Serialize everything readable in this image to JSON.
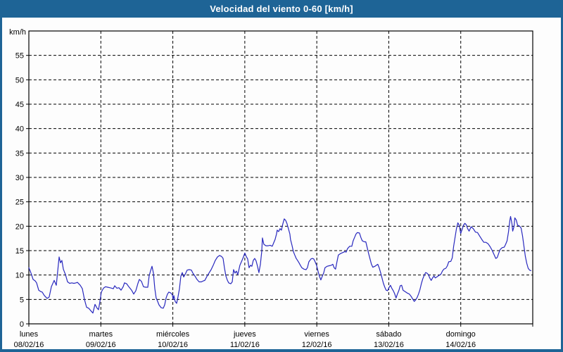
{
  "window": {
    "title": "Velocidad del viento 0-60 [km/h]"
  },
  "colors": {
    "frame": "#1e6496",
    "titlebar_bg": "#1e6496",
    "titlebar_text": "#ffffff",
    "content_bg": "#fdfdfd",
    "axis": "#000000",
    "grid": "#000000",
    "text": "#000000",
    "line": "#2828be"
  },
  "chart_data": {
    "type": "line",
    "title": "Velocidad del viento 0-60 [km/h]",
    "unit_label": "km/h",
    "xlabel": "",
    "ylabel": "km/h",
    "ylim": [
      0,
      60
    ],
    "xlim_days": [
      0,
      7
    ],
    "yticks": [
      0,
      5,
      10,
      15,
      20,
      25,
      30,
      35,
      40,
      45,
      50,
      55
    ],
    "grid": "dashed",
    "legend": "none",
    "days": [
      {
        "name": "lunes",
        "date": "08/02/16"
      },
      {
        "name": "martes",
        "date": "09/02/16"
      },
      {
        "name": "miércoles",
        "date": "10/02/16"
      },
      {
        "name": "jueves",
        "date": "11/02/16"
      },
      {
        "name": "viernes",
        "date": "12/02/16"
      },
      {
        "name": "sábado",
        "date": "13/02/16"
      },
      {
        "name": "domingo",
        "date": "14/02/16"
      }
    ],
    "series": [
      {
        "name": "Velocidad del viento",
        "color": "#2828be",
        "points": [
          [
            0.0,
            11.5
          ],
          [
            0.02,
            10.8
          ],
          [
            0.039,
            10.0
          ],
          [
            0.059,
            9.1
          ],
          [
            0.088,
            8.8
          ],
          [
            0.108,
            8.4
          ],
          [
            0.137,
            6.9
          ],
          [
            0.166,
            6.6
          ],
          [
            0.186,
            6.5
          ],
          [
            0.215,
            5.8
          ],
          [
            0.254,
            5.2
          ],
          [
            0.283,
            5.5
          ],
          [
            0.313,
            7.6
          ],
          [
            0.352,
            8.9
          ],
          [
            0.381,
            7.9
          ],
          [
            0.42,
            13.7
          ],
          [
            0.44,
            12.5
          ],
          [
            0.459,
            13.0
          ],
          [
            0.479,
            11.2
          ],
          [
            0.508,
            10.1
          ],
          [
            0.538,
            8.6
          ],
          [
            0.567,
            8.3
          ],
          [
            0.596,
            8.4
          ],
          [
            0.626,
            8.3
          ],
          [
            0.655,
            8.4
          ],
          [
            0.675,
            8.5
          ],
          [
            0.714,
            7.9
          ],
          [
            0.743,
            7.2
          ],
          [
            0.772,
            5.0
          ],
          [
            0.802,
            3.4
          ],
          [
            0.831,
            3.2
          ],
          [
            0.86,
            2.7
          ],
          [
            0.89,
            2.2
          ],
          [
            0.919,
            4.0
          ],
          [
            0.948,
            3.2
          ],
          [
            0.968,
            2.9
          ],
          [
            0.987,
            4.6
          ],
          [
            1.007,
            6.5
          ],
          [
            1.036,
            7.3
          ],
          [
            1.066,
            7.6
          ],
          [
            1.095,
            7.5
          ],
          [
            1.124,
            7.4
          ],
          [
            1.153,
            7.3
          ],
          [
            1.173,
            7.2
          ],
          [
            1.193,
            7.8
          ],
          [
            1.222,
            7.3
          ],
          [
            1.251,
            7.4
          ],
          [
            1.281,
            6.9
          ],
          [
            1.31,
            7.6
          ],
          [
            1.329,
            8.4
          ],
          [
            1.359,
            8.2
          ],
          [
            1.388,
            7.6
          ],
          [
            1.427,
            6.9
          ],
          [
            1.457,
            6.1
          ],
          [
            1.486,
            6.8
          ],
          [
            1.515,
            8.3
          ],
          [
            1.535,
            9.1
          ],
          [
            1.564,
            8.7
          ],
          [
            1.593,
            7.6
          ],
          [
            1.623,
            7.5
          ],
          [
            1.652,
            7.5
          ],
          [
            1.671,
            9.8
          ],
          [
            1.691,
            10.9
          ],
          [
            1.711,
            11.8
          ],
          [
            1.73,
            10.4
          ],
          [
            1.75,
            7.2
          ],
          [
            1.769,
            5.3
          ],
          [
            1.789,
            4.6
          ],
          [
            1.808,
            3.9
          ],
          [
            1.838,
            3.3
          ],
          [
            1.867,
            3.2
          ],
          [
            1.887,
            3.9
          ],
          [
            1.906,
            5.3
          ],
          [
            1.926,
            6.1
          ],
          [
            1.945,
            6.5
          ],
          [
            1.975,
            6.3
          ],
          [
            1.994,
            5.9
          ],
          [
            2.004,
            5.0
          ],
          [
            2.014,
            5.8
          ],
          [
            2.033,
            4.6
          ],
          [
            2.053,
            4.2
          ],
          [
            2.072,
            5.5
          ],
          [
            2.092,
            7.2
          ],
          [
            2.112,
            9.8
          ],
          [
            2.131,
            10.5
          ],
          [
            2.151,
            9.6
          ],
          [
            2.17,
            10.1
          ],
          [
            2.199,
            11.0
          ],
          [
            2.229,
            11.1
          ],
          [
            2.258,
            11.0
          ],
          [
            2.278,
            10.4
          ],
          [
            2.307,
            9.8
          ],
          [
            2.336,
            9.1
          ],
          [
            2.366,
            8.6
          ],
          [
            2.395,
            8.6
          ],
          [
            2.424,
            8.8
          ],
          [
            2.444,
            8.9
          ],
          [
            2.473,
            9.7
          ],
          [
            2.502,
            10.4
          ],
          [
            2.532,
            11.1
          ],
          [
            2.561,
            12.0
          ],
          [
            2.59,
            13.0
          ],
          [
            2.62,
            13.7
          ],
          [
            2.649,
            14.0
          ],
          [
            2.678,
            13.8
          ],
          [
            2.698,
            13.4
          ],
          [
            2.717,
            11.5
          ],
          [
            2.737,
            9.8
          ],
          [
            2.756,
            9.0
          ],
          [
            2.776,
            8.4
          ],
          [
            2.805,
            8.2
          ],
          [
            2.825,
            8.6
          ],
          [
            2.844,
            11.1
          ],
          [
            2.864,
            10.4
          ],
          [
            2.883,
            10.8
          ],
          [
            2.903,
            10.1
          ],
          [
            2.932,
            12.0
          ],
          [
            2.961,
            13.0
          ],
          [
            2.981,
            13.7
          ],
          [
            3.0,
            14.5
          ],
          [
            3.02,
            13.8
          ],
          [
            3.04,
            13.3
          ],
          [
            3.059,
            11.5
          ],
          [
            3.079,
            12.0
          ],
          [
            3.098,
            11.8
          ],
          [
            3.118,
            13.0
          ],
          [
            3.137,
            13.4
          ],
          [
            3.157,
            12.9
          ],
          [
            3.176,
            11.8
          ],
          [
            3.196,
            10.5
          ],
          [
            3.216,
            12.2
          ],
          [
            3.235,
            14.8
          ],
          [
            3.245,
            17.6
          ],
          [
            3.264,
            16.3
          ],
          [
            3.294,
            16.0
          ],
          [
            3.323,
            16.0
          ],
          [
            3.352,
            16.1
          ],
          [
            3.382,
            15.9
          ],
          [
            3.401,
            16.6
          ],
          [
            3.421,
            17.3
          ],
          [
            3.44,
            18.4
          ],
          [
            3.45,
            19.2
          ],
          [
            3.47,
            18.9
          ],
          [
            3.489,
            19.5
          ],
          [
            3.509,
            19.2
          ],
          [
            3.528,
            20.5
          ],
          [
            3.548,
            21.5
          ],
          [
            3.567,
            21.2
          ],
          [
            3.587,
            20.5
          ],
          [
            3.606,
            19.5
          ],
          [
            3.626,
            18.4
          ],
          [
            3.635,
            17.3
          ],
          [
            3.655,
            16.1
          ],
          [
            3.675,
            14.8
          ],
          [
            3.694,
            14.1
          ],
          [
            3.714,
            13.4
          ],
          [
            3.733,
            13.0
          ],
          [
            3.753,
            12.5
          ],
          [
            3.772,
            12.0
          ],
          [
            3.792,
            11.5
          ],
          [
            3.821,
            11.2
          ],
          [
            3.851,
            11.1
          ],
          [
            3.87,
            11.5
          ],
          [
            3.89,
            12.7
          ],
          [
            3.919,
            13.3
          ],
          [
            3.938,
            13.4
          ],
          [
            3.958,
            13.3
          ],
          [
            3.977,
            12.7
          ],
          [
            3.997,
            12.0
          ],
          [
            4.017,
            10.8
          ],
          [
            4.036,
            9.8
          ],
          [
            4.056,
            9.0
          ],
          [
            4.075,
            9.7
          ],
          [
            4.095,
            10.4
          ],
          [
            4.114,
            11.5
          ],
          [
            4.144,
            11.8
          ],
          [
            4.173,
            11.9
          ],
          [
            4.202,
            12.0
          ],
          [
            4.222,
            12.2
          ],
          [
            4.241,
            11.5
          ],
          [
            4.261,
            11.2
          ],
          [
            4.28,
            12.7
          ],
          [
            4.3,
            14.1
          ],
          [
            4.329,
            14.4
          ],
          [
            4.359,
            14.6
          ],
          [
            4.388,
            14.8
          ],
          [
            4.408,
            14.7
          ],
          [
            4.427,
            15.4
          ],
          [
            4.457,
            15.9
          ],
          [
            4.486,
            15.9
          ],
          [
            4.505,
            17.0
          ],
          [
            4.525,
            17.7
          ],
          [
            4.545,
            18.4
          ],
          [
            4.564,
            18.7
          ],
          [
            4.593,
            18.6
          ],
          [
            4.613,
            17.7
          ],
          [
            4.632,
            17.0
          ],
          [
            4.662,
            16.8
          ],
          [
            4.681,
            16.8
          ],
          [
            4.701,
            15.6
          ],
          [
            4.72,
            14.4
          ],
          [
            4.74,
            13.3
          ],
          [
            4.759,
            12.2
          ],
          [
            4.779,
            11.6
          ],
          [
            4.808,
            11.8
          ],
          [
            4.828,
            12.0
          ],
          [
            4.847,
            12.2
          ],
          [
            4.867,
            11.5
          ],
          [
            4.886,
            10.5
          ],
          [
            4.906,
            9.4
          ],
          [
            4.925,
            8.3
          ],
          [
            4.945,
            7.5
          ],
          [
            4.964,
            6.9
          ],
          [
            4.984,
            6.8
          ],
          [
            5.003,
            7.4
          ],
          [
            5.023,
            7.9
          ],
          [
            5.042,
            7.3
          ],
          [
            5.062,
            6.8
          ],
          [
            5.081,
            6.2
          ],
          [
            5.101,
            5.3
          ],
          [
            5.12,
            6.1
          ],
          [
            5.14,
            6.8
          ],
          [
            5.159,
            7.8
          ],
          [
            5.179,
            7.9
          ],
          [
            5.198,
            6.9
          ],
          [
            5.228,
            6.6
          ],
          [
            5.257,
            6.3
          ],
          [
            5.286,
            6.1
          ],
          [
            5.316,
            5.5
          ],
          [
            5.335,
            5.0
          ],
          [
            5.355,
            4.6
          ],
          [
            5.374,
            4.9
          ],
          [
            5.394,
            5.4
          ],
          [
            5.413,
            6.1
          ],
          [
            5.433,
            7.0
          ],
          [
            5.452,
            8.2
          ],
          [
            5.472,
            9.2
          ],
          [
            5.491,
            9.9
          ],
          [
            5.511,
            10.5
          ],
          [
            5.53,
            10.4
          ],
          [
            5.55,
            10.1
          ],
          [
            5.569,
            9.4
          ],
          [
            5.589,
            8.9
          ],
          [
            5.608,
            9.4
          ],
          [
            5.628,
            9.8
          ],
          [
            5.647,
            9.4
          ],
          [
            5.667,
            9.6
          ],
          [
            5.696,
            9.9
          ],
          [
            5.726,
            10.2
          ],
          [
            5.745,
            10.8
          ],
          [
            5.765,
            11.2
          ],
          [
            5.794,
            11.4
          ],
          [
            5.814,
            11.9
          ],
          [
            5.833,
            12.7
          ],
          [
            5.862,
            12.8
          ],
          [
            5.882,
            13.5
          ],
          [
            5.901,
            15.9
          ],
          [
            5.921,
            17.7
          ],
          [
            5.94,
            19.5
          ],
          [
            5.96,
            20.7
          ],
          [
            5.979,
            20.2
          ],
          [
            5.999,
            18.5
          ],
          [
            6.018,
            19.3
          ],
          [
            6.038,
            20.2
          ],
          [
            6.057,
            20.6
          ],
          [
            6.077,
            20.3
          ],
          [
            6.096,
            19.5
          ],
          [
            6.116,
            19.0
          ],
          [
            6.145,
            19.9
          ],
          [
            6.174,
            19.5
          ],
          [
            6.204,
            18.8
          ],
          [
            6.233,
            18.7
          ],
          [
            6.262,
            18.0
          ],
          [
            6.292,
            17.3
          ],
          [
            6.321,
            16.7
          ],
          [
            6.35,
            16.7
          ],
          [
            6.38,
            16.4
          ],
          [
            6.409,
            15.8
          ],
          [
            6.438,
            15.0
          ],
          [
            6.468,
            14.0
          ],
          [
            6.487,
            13.4
          ],
          [
            6.507,
            13.6
          ],
          [
            6.526,
            14.4
          ],
          [
            6.546,
            15.2
          ],
          [
            6.575,
            15.6
          ],
          [
            6.604,
            15.7
          ],
          [
            6.624,
            16.3
          ],
          [
            6.643,
            17.0
          ],
          [
            6.663,
            18.8
          ],
          [
            6.682,
            21.2
          ],
          [
            6.692,
            22.0
          ],
          [
            6.712,
            20.5
          ],
          [
            6.721,
            19.0
          ],
          [
            6.741,
            20.0
          ],
          [
            6.751,
            21.7
          ],
          [
            6.77,
            21.3
          ],
          [
            6.79,
            20.2
          ],
          [
            6.819,
            20.0
          ],
          [
            6.839,
            19.6
          ],
          [
            6.858,
            18.0
          ],
          [
            6.878,
            15.9
          ],
          [
            6.897,
            13.8
          ],
          [
            6.917,
            12.4
          ],
          [
            6.936,
            11.4
          ],
          [
            6.956,
            11.0
          ],
          [
            6.975,
            10.9
          ]
        ]
      }
    ]
  }
}
